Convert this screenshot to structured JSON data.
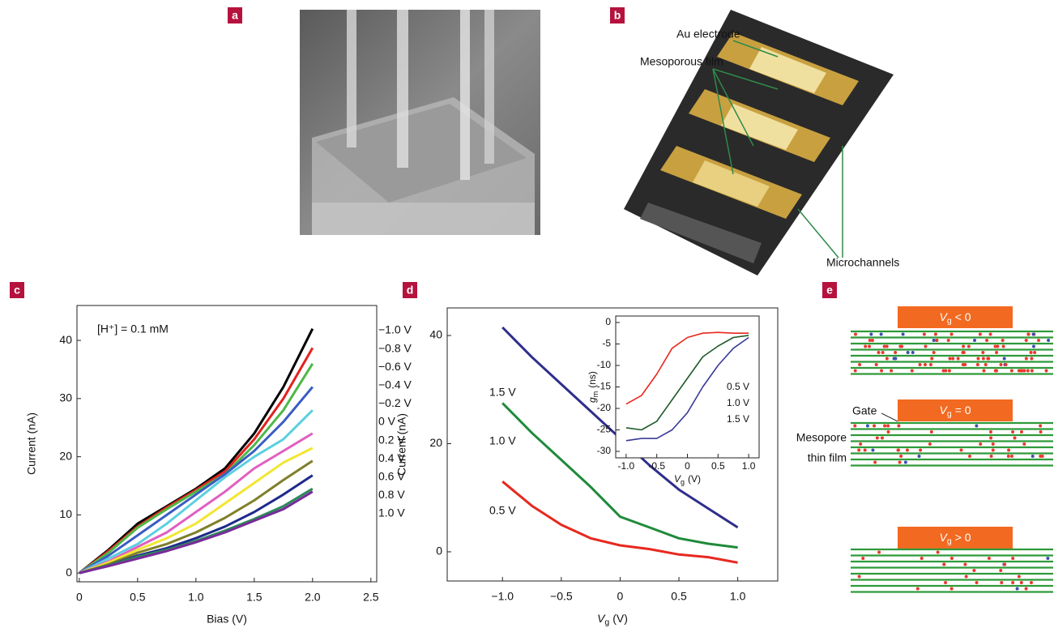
{
  "panels": {
    "a": {
      "label": "a"
    },
    "b": {
      "label": "b",
      "annotations": [
        "Au electrode",
        "Mesoporous film",
        "Microchannels"
      ]
    },
    "e": {
      "label": "e",
      "states": [
        {
          "symbol": "V",
          "subscript": "g",
          "relation": "< 0"
        },
        {
          "symbol": "V",
          "subscript": "g",
          "relation": "= 0"
        },
        {
          "symbol": "V",
          "subscript": "g",
          "relation": "> 0"
        }
      ],
      "gate": "Gate",
      "film": [
        "Mesopore",
        "thin film"
      ]
    }
  },
  "chart_data": [
    {
      "type": "line",
      "panel_label": "c",
      "annotation": "[H⁺] = 0.1 mM",
      "x_label": "Bias (V)",
      "y_label": "Current (nA)",
      "x": [
        0,
        0.25,
        0.5,
        0.75,
        1.0,
        1.25,
        1.5,
        1.75,
        2.0
      ],
      "xlim": [
        -0.02,
        2.55
      ],
      "xticks": [
        0,
        0.5,
        {
          "value": 1,
          "label": "1.0"
        },
        1.5,
        {
          "value": 2,
          "label": "2.0"
        },
        2.5
      ],
      "ylim": [
        -1.5,
        46
      ],
      "yticks": [
        0,
        10,
        20,
        30,
        40
      ],
      "series": [
        {
          "name": "−1.0 V",
          "color": "#000000",
          "values": [
            0,
            4,
            8.5,
            11.5,
            14.5,
            18,
            24,
            32,
            42
          ]
        },
        {
          "name": "−0.8 V",
          "color": "#e3231c",
          "values": [
            0,
            3.8,
            8,
            11.3,
            14.3,
            17.5,
            23,
            30,
            38.7
          ]
        },
        {
          "name": "−0.6 V",
          "color": "#4db848",
          "values": [
            0,
            3.5,
            7.8,
            11,
            14,
            17,
            22,
            28,
            36
          ]
        },
        {
          "name": "−0.4 V",
          "color": "#3a5cc4",
          "values": [
            0,
            3,
            6.5,
            10,
            13.5,
            17,
            21,
            26,
            32
          ]
        },
        {
          "name": "−0.2 V",
          "color": "#5ccfe0",
          "values": [
            0,
            2.5,
            5,
            8.5,
            12.5,
            16.5,
            20,
            23,
            28
          ]
        },
        {
          "name": "0 V",
          "color": "#e05fc0",
          "values": [
            0,
            2,
            4.5,
            7,
            10.5,
            14,
            18,
            21,
            24
          ]
        },
        {
          "name": "0.2 V",
          "color": "#f2e630",
          "values": [
            0,
            1.8,
            4,
            6,
            8.5,
            12,
            15.5,
            19,
            21.5
          ]
        },
        {
          "name": "0.4 V",
          "color": "#7f7f2a",
          "values": [
            0,
            1.5,
            3.5,
            5,
            7,
            9.5,
            12.5,
            16,
            19.3
          ]
        },
        {
          "name": "0.6 V",
          "color": "#1e2a8a",
          "values": [
            0,
            1.3,
            3,
            4.3,
            6,
            8,
            10.5,
            13.5,
            16.8
          ]
        },
        {
          "name": "0.8 V",
          "color": "#2b8a5a",
          "values": [
            0,
            1.3,
            2.8,
            4,
            5.5,
            7.3,
            9.3,
            11.5,
            14.5
          ]
        },
        {
          "name": "1.0 V",
          "color": "#7a2a9a",
          "values": [
            0,
            1.2,
            2.5,
            3.8,
            5.3,
            7,
            9,
            11,
            14
          ]
        }
      ]
    },
    {
      "type": "line",
      "panel_label": "d",
      "x_label": {
        "symbol": "V",
        "subscript": "g",
        "unit": "(V)"
      },
      "y_label": "Current (nA)",
      "x": [
        -1,
        -0.75,
        -0.5,
        -0.25,
        0,
        0.25,
        0.5,
        0.75,
        1
      ],
      "xlim": [
        -1.47,
        1.34
      ],
      "xticks": [
        {
          "value": -1,
          "label": "−1.0"
        },
        {
          "value": -0.5,
          "label": "−0.5"
        },
        0,
        0.5,
        {
          "value": 1,
          "label": "1.0"
        }
      ],
      "ylim": [
        -5.4,
        45.1
      ],
      "yticks": [
        0,
        20,
        40
      ],
      "series": [
        {
          "name": "1.5 V",
          "color": "#2e2e8c",
          "values": [
            41.5,
            36,
            31,
            26,
            21,
            16,
            11.5,
            8,
            4.5
          ]
        },
        {
          "name": "1.0 V",
          "color": "#1f8a3a",
          "values": [
            27.5,
            22,
            17,
            12,
            6.5,
            4.5,
            2.5,
            1.5,
            0.8
          ]
        },
        {
          "name": "0.5 V",
          "color": "#e8281e",
          "values": [
            13,
            8.5,
            5,
            2.5,
            1.2,
            0.5,
            -0.5,
            -1,
            -2
          ]
        }
      ]
    },
    {
      "type": "line",
      "x_label": {
        "symbol": "V",
        "subscript": "g",
        "unit": "(V)"
      },
      "y_label": {
        "symbol": "g",
        "subscript": "m",
        "unit": "(ns)"
      },
      "x": [
        -1,
        -0.75,
        -0.5,
        -0.25,
        0,
        0.25,
        0.5,
        0.75,
        1
      ],
      "xlim": [
        -1.17,
        1.17
      ],
      "xticks": [
        {
          "value": -1,
          "label": "-1.0"
        },
        -0.5,
        0,
        0.5,
        {
          "value": 1,
          "label": "1.0"
        }
      ],
      "ylim": [
        -31.5,
        1.5
      ],
      "yticks": [
        0,
        -5,
        -10,
        -15,
        -20,
        -25,
        -30
      ],
      "series": [
        {
          "name": "0.5 V",
          "color": "#e8281e",
          "values": [
            -19,
            -17,
            -12,
            -6,
            -3.5,
            -2.5,
            -2.3,
            -2.5,
            -2.5
          ]
        },
        {
          "name": "1.0 V",
          "color": "#1f5a2a",
          "values": [
            -24.5,
            -25,
            -23,
            -18,
            -13,
            -8,
            -5.5,
            -3.5,
            -3
          ]
        },
        {
          "name": "1.5 V",
          "color": "#3a3a9a",
          "values": [
            -27.5,
            -27,
            -27,
            -25,
            -21,
            -15,
            -10,
            -6,
            -3.5
          ]
        }
      ]
    }
  ]
}
